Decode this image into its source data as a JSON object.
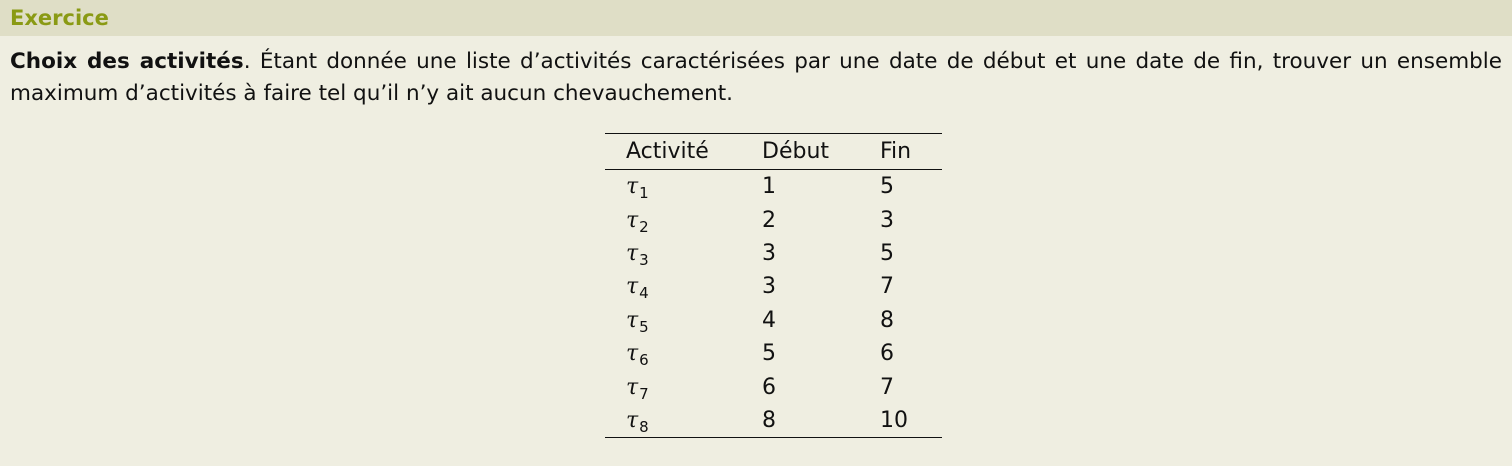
{
  "block": {
    "title": "Exercice"
  },
  "paragraph": {
    "bold_lead": "Choix des activités",
    "text": ". Étant donnée une liste d’activités caractérisées par une date de début et une date de fin, trouver un ensemble maximum d’activités à faire tel qu’il n’y ait aucun chevauchement."
  },
  "table": {
    "headers": [
      "Activité",
      "Début",
      "Fin"
    ],
    "rows": [
      {
        "symbol": "τ",
        "index": "1",
        "debut": "1",
        "fin": "5"
      },
      {
        "symbol": "τ",
        "index": "2",
        "debut": "2",
        "fin": "3"
      },
      {
        "symbol": "τ",
        "index": "3",
        "debut": "3",
        "fin": "5"
      },
      {
        "symbol": "τ",
        "index": "4",
        "debut": "3",
        "fin": "7"
      },
      {
        "symbol": "τ",
        "index": "5",
        "debut": "4",
        "fin": "8"
      },
      {
        "symbol": "τ",
        "index": "6",
        "debut": "5",
        "fin": "6"
      },
      {
        "symbol": "τ",
        "index": "7",
        "debut": "6",
        "fin": "7"
      },
      {
        "symbol": "τ",
        "index": "8",
        "debut": "8",
        "fin": "10"
      }
    ]
  }
}
